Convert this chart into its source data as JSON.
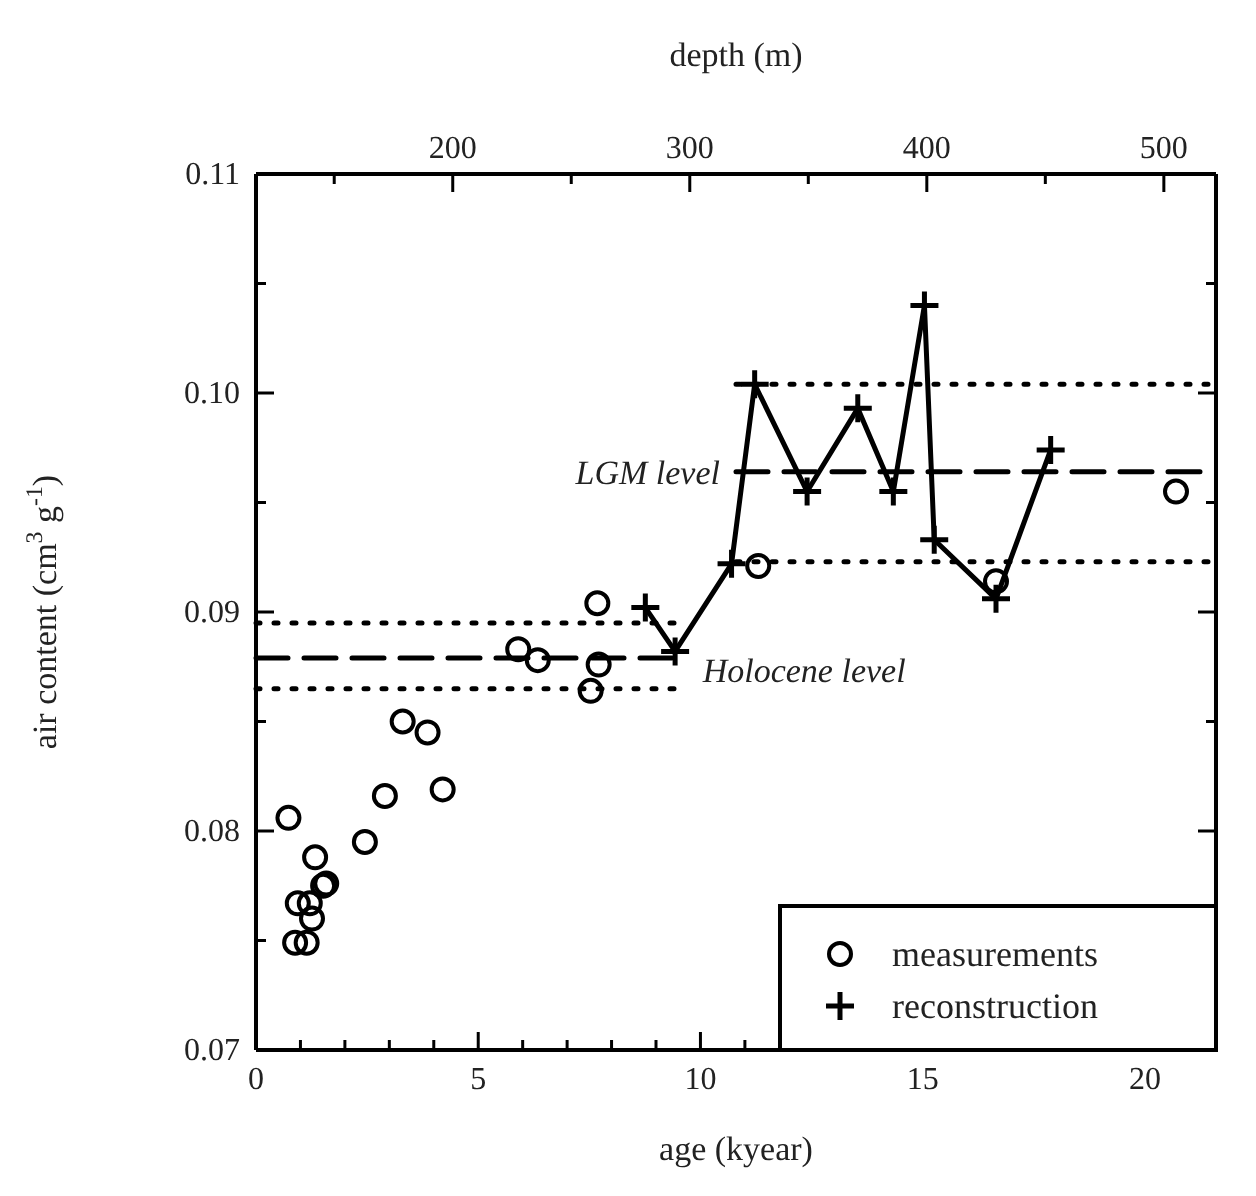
{
  "chart_data": {
    "type": "scatter",
    "xlabel": "age (kyear)",
    "ylabel": "air content (cm$^{3}$ g$^{-1}$)",
    "x2label": "depth (m)",
    "xlim": [
      0,
      21.6
    ],
    "ylim": [
      0.07,
      0.11
    ],
    "xticks": [
      0,
      {
        "value": 1,
        "label": null
      },
      {
        "value": 2,
        "label": null
      },
      {
        "value": 3,
        "label": null
      },
      {
        "value": 4,
        "label": null
      },
      5,
      {
        "value": 6,
        "label": null
      },
      {
        "value": 7,
        "label": null
      },
      {
        "value": 8,
        "label": null
      },
      {
        "value": 9,
        "label": null
      },
      10,
      {
        "value": 11,
        "label": null
      },
      {
        "value": 12,
        "label": null
      },
      {
        "value": 13,
        "label": null
      },
      {
        "value": 14,
        "label": null
      },
      15,
      {
        "value": 16,
        "label": null
      },
      {
        "value": 17,
        "label": null
      },
      {
        "value": 18,
        "label": null
      },
      {
        "value": 19,
        "label": null
      },
      20,
      {
        "value": 21,
        "label": null
      }
    ],
    "yticks": [
      0.07,
      {
        "value": 0.075,
        "label": null
      },
      0.08,
      {
        "value": 0.085,
        "label": null
      },
      0.09,
      {
        "value": 0.095,
        "label": null
      },
      {
        "value": 0.1,
        "label": "0.10"
      },
      {
        "value": 0.105,
        "label": null
      },
      0.11
    ],
    "x2lim": [
      117,
      522
    ],
    "x2ticks": [
      {
        "value": 150,
        "label": null
      },
      200,
      {
        "value": 250,
        "label": null
      },
      300,
      {
        "value": 350,
        "label": null
      },
      400,
      {
        "value": 450,
        "label": null
      },
      500
    ],
    "series": [
      {
        "name": "measurements",
        "marker": "circle",
        "color": "#000000",
        "x": [
          0.73,
          0.88,
          1.14,
          0.94,
          1.21,
          1.26,
          1.33,
          1.51,
          1.58,
          2.45,
          2.9,
          4.2,
          3.3,
          3.86,
          5.9,
          6.34,
          7.68,
          7.71,
          7.53,
          11.3,
          16.65,
          20.7
        ],
        "values": [
          0.0806,
          0.0749,
          0.0749,
          0.0767,
          0.0767,
          0.076,
          0.0788,
          0.0775,
          0.0776,
          0.0795,
          0.0816,
          0.0819,
          0.085,
          0.0845,
          0.0883,
          0.0878,
          0.0904,
          0.0876,
          0.0864,
          0.0921,
          0.0914,
          0.0955
        ]
      },
      {
        "name": "reconstruction",
        "type": "line",
        "marker": "cross",
        "line_style": "solid",
        "color": "#000000",
        "x": [
          8.76,
          9.43,
          10.7,
          11.22,
          12.4,
          13.54,
          14.34,
          15.04,
          15.26,
          16.65,
          17.88
        ],
        "values": [
          0.0902,
          0.0882,
          0.0922,
          0.1004,
          0.0955,
          0.0993,
          0.0955,
          0.104,
          0.0933,
          0.0906,
          0.0974
        ]
      },
      {
        "type": "line",
        "marker": "none",
        "line_style": "dashed",
        "color": "#000000",
        "x": [
          0,
          9.6
        ],
        "values": [
          0.0879,
          0.0879
        ]
      },
      {
        "type": "line",
        "marker": "none",
        "line_style": "dotted",
        "color": "#000000",
        "x": [
          0,
          9.6
        ],
        "values": [
          0.0895,
          0.0895
        ]
      },
      {
        "type": "line",
        "marker": "none",
        "line_style": "dotted",
        "color": "#000000",
        "x": [
          0,
          9.6
        ],
        "values": [
          0.0865,
          0.0865
        ]
      },
      {
        "type": "line",
        "marker": "none",
        "line_style": "dashed",
        "color": "#000000",
        "x": [
          10.8,
          21.6
        ],
        "values": [
          0.0964,
          0.0964
        ]
      },
      {
        "type": "line",
        "marker": "none",
        "line_style": "dotted",
        "color": "#000000",
        "x": [
          10.8,
          21.6
        ],
        "values": [
          0.1004,
          0.1004
        ]
      },
      {
        "type": "line",
        "marker": "none",
        "line_style": "dotted",
        "color": "#000000",
        "x": [
          10.8,
          21.6
        ],
        "values": [
          0.0923,
          0.0923
        ]
      }
    ],
    "annotations": [
      {
        "text": "LGM level",
        "x": 10.8,
        "y": 0.0964
      },
      {
        "text": "Holocene level",
        "x": 9.6,
        "y": 0.0879
      }
    ],
    "legend": "bottom right",
    "grid": false
  }
}
